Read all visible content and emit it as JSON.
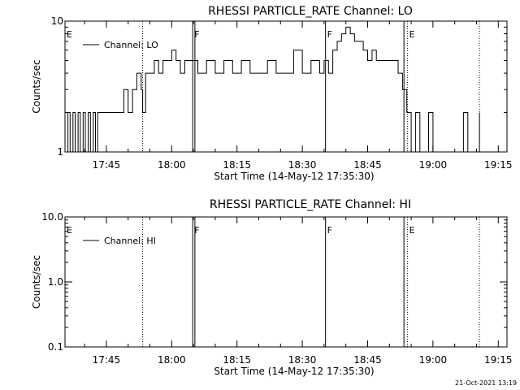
{
  "chart_data": [
    {
      "type": "line",
      "title": "RHESSI PARTICLE_RATE Channel: LO",
      "xlabel": "Start Time (14-May-12 17:35:30)",
      "ylabel": "Counts/sec",
      "yscale": "log",
      "ylim": [
        1,
        10
      ],
      "xlim": [
        "17:35:30",
        "19:17:00"
      ],
      "x_ticks": [
        "17:45",
        "18:00",
        "18:15",
        "18:30",
        "18:45",
        "19:00",
        "19:15"
      ],
      "y_ticks": [
        "1",
        "10"
      ],
      "legend": {
        "placement": "top-left",
        "entries": [
          "Channel: LO"
        ]
      },
      "grid": false,
      "markers": [
        {
          "time": "17:35:30",
          "label": "E",
          "style": "solid"
        },
        {
          "time": "17:53:20",
          "label": "",
          "style": "dotted"
        },
        {
          "time": "18:04:50",
          "label": "F",
          "style": "solid"
        },
        {
          "time": "18:05:20",
          "label": "",
          "style": "solid"
        },
        {
          "time": "18:35:20",
          "label": "F",
          "style": "solid"
        },
        {
          "time": "18:53:20",
          "label": "",
          "style": "solid"
        },
        {
          "time": "18:54:10",
          "label": "E",
          "style": "dotted"
        },
        {
          "time": "19:10:40",
          "label": "",
          "style": "dotted"
        }
      ],
      "series": [
        {
          "name": "Channel: LO",
          "x": [
            "17:35:30",
            "17:36:10",
            "17:36:40",
            "17:37:20",
            "17:37:50",
            "17:38:30",
            "17:39:00",
            "17:39:40",
            "17:40:10",
            "17:40:50",
            "17:41:20",
            "17:42:00",
            "17:42:30",
            "17:43:00",
            "17:44:00",
            "17:45:00",
            "17:46:00",
            "17:47:00",
            "17:48:00",
            "17:49:00",
            "17:50:00",
            "17:51:00",
            "17:52:00",
            "17:53:00",
            "17:53:20",
            "17:54:00",
            "17:55:00",
            "17:56:00",
            "17:57:00",
            "17:58:00",
            "17:59:00",
            "18:00:00",
            "18:01:00",
            "18:02:00",
            "18:03:00",
            "18:04:00",
            "18:04:40",
            "18:06:00",
            "18:08:00",
            "18:10:00",
            "18:12:00",
            "18:14:00",
            "18:16:00",
            "18:18:00",
            "18:20:00",
            "18:22:00",
            "18:24:00",
            "18:26:00",
            "18:28:00",
            "18:30:00",
            "18:32:00",
            "18:34:00",
            "18:35:00",
            "18:36:00",
            "18:37:00",
            "18:38:00",
            "18:39:00",
            "18:40:00",
            "18:41:00",
            "18:42:00",
            "18:43:00",
            "18:44:00",
            "18:45:00",
            "18:46:00",
            "18:47:00",
            "18:48:00",
            "18:49:00",
            "18:50:00",
            "18:51:00",
            "18:52:00",
            "18:53:00",
            "18:53:30",
            "18:54:00",
            "18:54:30",
            "18:55:00",
            "18:56:00",
            "18:57:00",
            "18:58:00",
            "18:59:00",
            "19:00:00",
            "19:01:00",
            "19:02:00",
            "19:03:00",
            "19:04:00",
            "19:05:00",
            "19:06:00",
            "19:07:00",
            "19:08:00",
            "19:09:00",
            "19:10:00",
            "19:10:40"
          ],
          "values": [
            1,
            2,
            1,
            2,
            1,
            2,
            1,
            2,
            1,
            2,
            1,
            2,
            1,
            2,
            2,
            2,
            2,
            2,
            2,
            3,
            2,
            3,
            4,
            3,
            2,
            4,
            4,
            5,
            4,
            5,
            5,
            6,
            5,
            4,
            5,
            5,
            5,
            4,
            5,
            4,
            5,
            4,
            5,
            4,
            4,
            5,
            4,
            4,
            6,
            4,
            5,
            4,
            5,
            4,
            6,
            7,
            8,
            9,
            8,
            7,
            7,
            6,
            5,
            6,
            5,
            5,
            5,
            5,
            5,
            4,
            3,
            3,
            2,
            2,
            1,
            2,
            1,
            1,
            2,
            1,
            1,
            1,
            1,
            1,
            1,
            1,
            2,
            1,
            1,
            1,
            2
          ]
        }
      ]
    },
    {
      "type": "line",
      "title": "RHESSI PARTICLE_RATE Channel: HI",
      "xlabel": "Start Time (14-May-12 17:35:30)",
      "ylabel": "Counts/sec",
      "yscale": "log",
      "ylim": [
        0.1,
        10.0
      ],
      "xlim": [
        "17:35:30",
        "19:17:00"
      ],
      "x_ticks": [
        "17:45",
        "18:00",
        "18:15",
        "18:30",
        "18:45",
        "19:00",
        "19:15"
      ],
      "y_ticks": [
        "0.1",
        "1.0",
        "10.0"
      ],
      "legend": {
        "placement": "top-left",
        "entries": [
          "Channel: HI"
        ]
      },
      "grid": false,
      "markers": [
        {
          "time": "17:35:30",
          "label": "E",
          "style": "solid"
        },
        {
          "time": "17:53:20",
          "label": "",
          "style": "dotted"
        },
        {
          "time": "18:04:50",
          "label": "F",
          "style": "solid"
        },
        {
          "time": "18:05:20",
          "label": "",
          "style": "solid"
        },
        {
          "time": "18:35:20",
          "label": "F",
          "style": "solid"
        },
        {
          "time": "18:53:20",
          "label": "",
          "style": "solid"
        },
        {
          "time": "18:54:10",
          "label": "E",
          "style": "dotted"
        },
        {
          "time": "19:10:40",
          "label": "",
          "style": "dotted"
        }
      ],
      "series": [
        {
          "name": "Channel: HI",
          "x": [],
          "values": []
        }
      ]
    }
  ],
  "timestamp": "21-Oct-2021 13:19"
}
